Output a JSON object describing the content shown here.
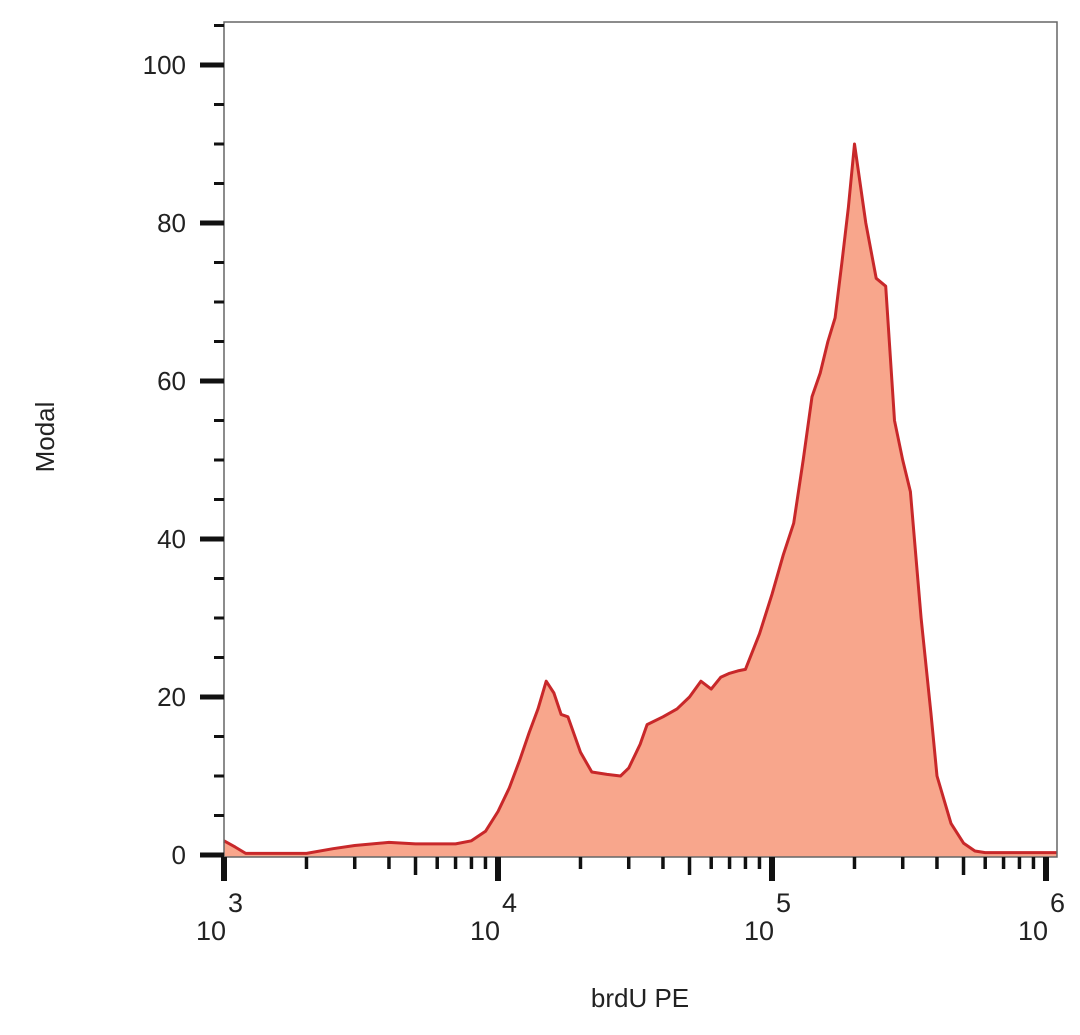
{
  "chart_data": {
    "type": "area",
    "title": "",
    "xlabel": "brdU PE",
    "ylabel": "Modal",
    "xscale": "log",
    "xlim": [
      1000,
      1150000
    ],
    "ylim": [
      0,
      105
    ],
    "grid": false,
    "legend": null,
    "y_ticks": [
      0,
      20,
      40,
      60,
      80,
      100
    ],
    "y_tick_labels": [
      "0",
      "20",
      "40",
      "60",
      "80",
      "100"
    ],
    "x_ticks": [
      1000,
      10000,
      100000,
      1000000
    ],
    "x_tick_labels": [
      {
        "base": "10",
        "exp": "3"
      },
      {
        "base": "10",
        "exp": "4"
      },
      {
        "base": "10",
        "exp": "5"
      },
      {
        "base": "10",
        "exp": "6"
      }
    ],
    "fill_color": "#f8a68c",
    "line_color": "#c8282a",
    "series": [
      {
        "name": "brdU PE",
        "x": [
          1000,
          1100,
          1200,
          1500,
          2000,
          2500,
          3000,
          4000,
          5000,
          6000,
          7000,
          8000,
          9000,
          10000,
          11000,
          12000,
          13000,
          14000,
          15000,
          16000,
          17000,
          18000,
          20000,
          22000,
          25000,
          28000,
          30000,
          33000,
          35000,
          40000,
          45000,
          50000,
          55000,
          60000,
          65000,
          70000,
          75000,
          80000,
          90000,
          100000,
          110000,
          120000,
          130000,
          140000,
          150000,
          160000,
          170000,
          180000,
          190000,
          200000,
          220000,
          240000,
          260000,
          280000,
          300000,
          320000,
          350000,
          380000,
          400000,
          450000,
          500000,
          550000,
          600000,
          700000,
          800000,
          900000,
          1000000,
          1150000
        ],
        "y": [
          1.8,
          1.0,
          0.2,
          0.2,
          0.2,
          0.8,
          1.2,
          1.6,
          1.4,
          1.4,
          1.4,
          1.8,
          3.0,
          5.5,
          8.5,
          12.0,
          15.5,
          18.5,
          22.0,
          20.5,
          17.8,
          17.5,
          13.0,
          10.5,
          10.2,
          10.0,
          11.0,
          14.0,
          16.5,
          17.5,
          18.5,
          20.0,
          22.0,
          21.0,
          22.5,
          23.0,
          23.3,
          23.5,
          28.0,
          33.0,
          38.0,
          42.0,
          50.0,
          58.0,
          61.0,
          65.0,
          68.0,
          75.0,
          82.0,
          90.0,
          80.0,
          73.0,
          72.0,
          55.0,
          50.0,
          46.0,
          30.0,
          18.0,
          10.0,
          4.0,
          1.5,
          0.5,
          0.3,
          0.3,
          0.3,
          0.3,
          0.3,
          0.3
        ]
      }
    ]
  }
}
